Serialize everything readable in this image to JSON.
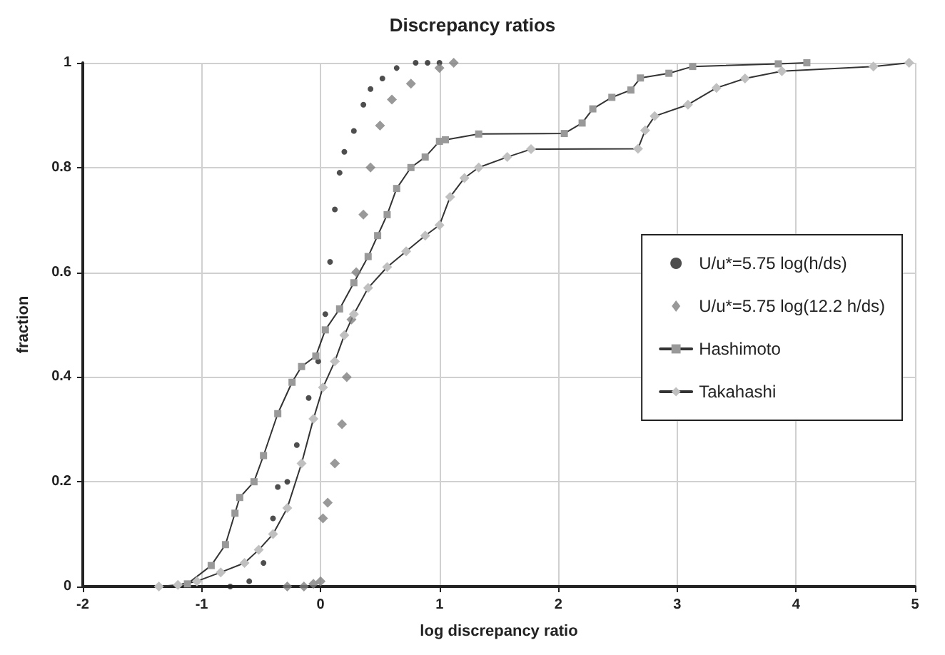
{
  "chart_data": {
    "type": "line",
    "title": "Discrepancy ratios",
    "xlabel": "log discrepancy ratio",
    "ylabel": "fraction",
    "xlim": [
      -2,
      5
    ],
    "xticks": [
      -2,
      -1,
      0,
      1,
      2,
      3,
      4,
      5
    ],
    "ylim": [
      0,
      1
    ],
    "yticks": [
      0,
      0.2,
      0.4,
      0.6,
      0.8,
      1
    ],
    "grid": true,
    "legend": "right",
    "series": [
      {
        "name": "U/u*=5.75 log(h/ds)",
        "type": "scatter",
        "marker": "circle",
        "color": "#222222",
        "x": [
          -0.76,
          -0.6,
          -0.48,
          -0.4,
          -0.36,
          -0.28,
          -0.2,
          -0.1,
          -0.02,
          0.04,
          0.08,
          0.12,
          0.16,
          0.2,
          0.28,
          0.36,
          0.42,
          0.52,
          0.64,
          0.8,
          0.9,
          1.0
        ],
        "values": [
          0,
          0.01,
          0.045,
          0.13,
          0.19,
          0.2,
          0.27,
          0.36,
          0.43,
          0.52,
          0.62,
          0.72,
          0.79,
          0.83,
          0.87,
          0.92,
          0.95,
          0.97,
          0.99,
          1,
          1,
          1
        ]
      },
      {
        "name": "U/u*=5.75 log(12.2 h/ds)",
        "type": "scatter",
        "marker": "diamond",
        "color": "#808080",
        "x": [
          -0.28,
          -0.14,
          -0.06,
          0,
          0.02,
          0.06,
          0.12,
          0.18,
          0.22,
          0.26,
          0.3,
          0.36,
          0.42,
          0.5,
          0.6,
          0.76,
          1.0,
          1.12
        ],
        "values": [
          0,
          0,
          0.005,
          0.01,
          0.13,
          0.16,
          0.235,
          0.31,
          0.4,
          0.51,
          0.6,
          0.71,
          0.8,
          0.88,
          0.93,
          0.96,
          0.99,
          1
        ]
      },
      {
        "name": "Hashimoto",
        "marker": "square",
        "color": "#999999",
        "x": [
          -1.12,
          -0.92,
          -0.8,
          -0.72,
          -0.68,
          -0.56,
          -0.48,
          -0.36,
          -0.24,
          -0.16,
          -0.04,
          0.04,
          0.16,
          0.28,
          0.4,
          0.48,
          0.56,
          0.64,
          0.76,
          0.88,
          1.0,
          1.05,
          1.33,
          2.05,
          2.2,
          2.29,
          2.45,
          2.61,
          2.69,
          2.93,
          3.13,
          3.85,
          4.09
        ],
        "values": [
          0.005,
          0.04,
          0.08,
          0.14,
          0.17,
          0.2,
          0.25,
          0.33,
          0.39,
          0.42,
          0.44,
          0.49,
          0.53,
          0.58,
          0.63,
          0.67,
          0.71,
          0.76,
          0.8,
          0.82,
          0.85,
          0.853,
          0.864,
          0.865,
          0.885,
          0.912,
          0.934,
          0.948,
          0.971,
          0.98,
          0.993,
          0.998,
          1
        ]
      },
      {
        "name": "Takahashi",
        "marker": "diamond",
        "color": "#c0c0c0",
        "x": [
          -1.36,
          -1.2,
          -1.04,
          -0.84,
          -0.64,
          -0.52,
          -0.4,
          -0.28,
          -0.16,
          -0.06,
          0.02,
          0.12,
          0.2,
          0.28,
          0.4,
          0.56,
          0.72,
          0.88,
          1.0,
          1.09,
          1.21,
          1.33,
          1.57,
          1.77,
          2.67,
          2.73,
          2.81,
          3.09,
          3.33,
          3.57,
          3.88,
          4.65,
          4.95
        ],
        "values": [
          0,
          0.003,
          0.01,
          0.027,
          0.045,
          0.07,
          0.1,
          0.15,
          0.235,
          0.32,
          0.38,
          0.43,
          0.48,
          0.52,
          0.57,
          0.61,
          0.64,
          0.67,
          0.69,
          0.744,
          0.78,
          0.8,
          0.82,
          0.835,
          0.836,
          0.871,
          0.898,
          0.92,
          0.952,
          0.97,
          0.984,
          0.993,
          1
        ]
      }
    ]
  }
}
